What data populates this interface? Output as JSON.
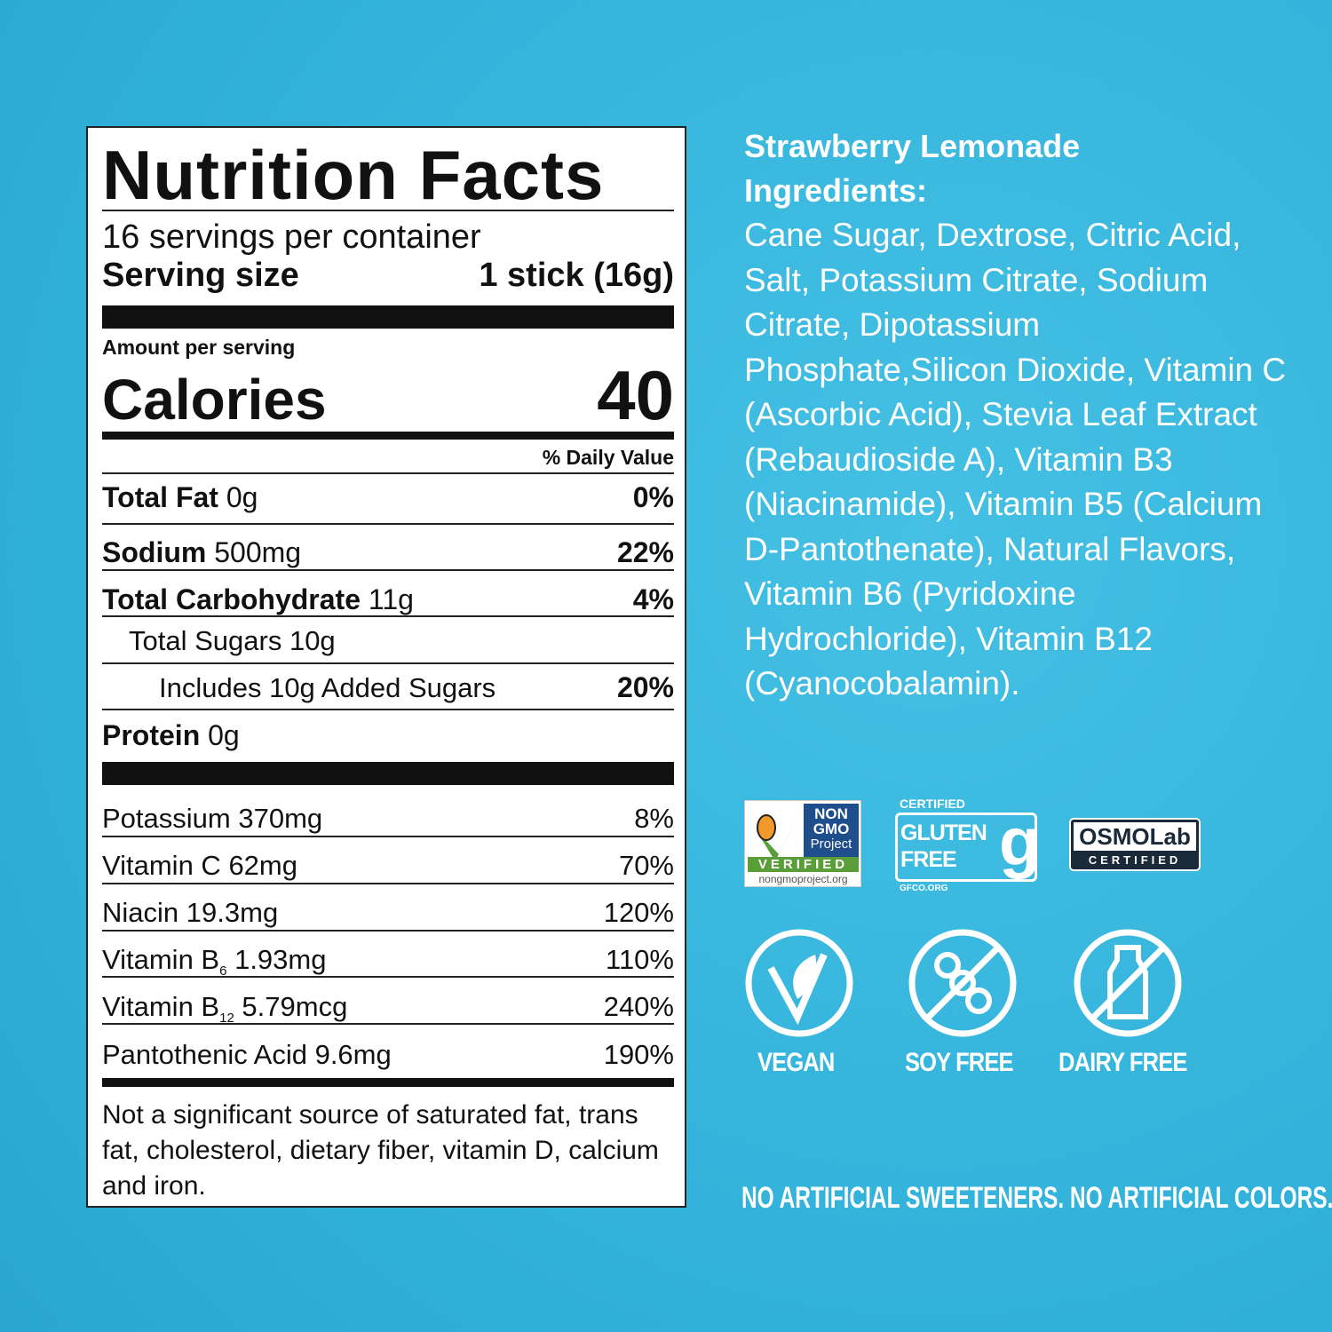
{
  "label": {
    "title": "Nutrition Facts",
    "servings": "16 servings per container",
    "serving_size_label": "Serving size",
    "serving_size_value": "1 stick (16g)",
    "amount_per_serving": "Amount per serving",
    "calories_label": "Calories",
    "calories_value": "40",
    "daily_value_header": "% Daily Value",
    "nutrients": [
      {
        "name": "Total Fat",
        "amount": "0g",
        "dv": "0%"
      },
      {
        "name": "Sodium",
        "amount": "500mg",
        "dv": "22%"
      },
      {
        "name": "Total Carbohydrate",
        "amount": "11g",
        "dv": "4%"
      },
      {
        "name": "Total Sugars",
        "amount": "10g",
        "dv": ""
      },
      {
        "name": "Includes 10g Added Sugars",
        "amount": "",
        "dv": "20%"
      },
      {
        "name": "Protein",
        "amount": "0g",
        "dv": ""
      }
    ],
    "vitamins": [
      {
        "name": "Potassium",
        "amount": "370mg",
        "dv": "8%"
      },
      {
        "name": "Vitamin C",
        "amount": "62mg",
        "dv": "70%"
      },
      {
        "name": "Niacin",
        "amount": "19.3mg",
        "dv": "120%"
      },
      {
        "name": "Vitamin B",
        "sub": "6",
        "amount": "1.93mg",
        "dv": "110%"
      },
      {
        "name": "Vitamin B",
        "sub": "12",
        "amount": "5.79mcg",
        "dv": "240%"
      },
      {
        "name": "Pantothenic Acid",
        "amount": "9.6mg",
        "dv": "190%"
      }
    ],
    "footnote": "Not a significant source of saturated fat, trans fat, cholesterol, dietary fiber, vitamin D, calcium and iron."
  },
  "ingredients": {
    "title": "Strawberry Lemonade",
    "heading": "Ingredients:",
    "text": "Cane Sugar, Dextrose, Citric Acid, Salt, Potassium Citrate, Sodium Citrate, Dipotassium Phosphate,Silicon Dioxide, Vitamin C (Ascorbic Acid), Stevia Leaf Extract (Rebaudioside A), Vitamin B3 (Niacinamide), Vitamin B5 (Calcium D-Pantothenate), Natural Flavors, Vitamin B6 (Pyridoxine Hydrochloride), Vitamin B12 (Cyanocobalamin)."
  },
  "badges": {
    "nongmo": {
      "line1": "NON",
      "line2": "GMO",
      "line3": "Project",
      "verified": "VERIFIED",
      "url": "nongmoproject.org"
    },
    "gluten": {
      "certified": "CERTIFIED",
      "line1": "GLUTEN",
      "line2": "FREE",
      "url": "GFCO.ORG"
    },
    "osmolab": {
      "name": "OSMOLab",
      "certified": "CERTIFIED"
    }
  },
  "icons": [
    {
      "icon": "vegan-leaf-icon",
      "label": "VEGAN"
    },
    {
      "icon": "soy-free-icon",
      "label": "SOY FREE"
    },
    {
      "icon": "dairy-free-icon",
      "label": "DAIRY FREE"
    }
  ],
  "claim": "NO ARTIFICIAL SWEETENERS. NO ARTIFICIAL COLORS.",
  "colors": {
    "background": "#3bb7dd",
    "nongmo_green": "#5a9e3a",
    "nongmo_blue": "#1f4e8c",
    "osmolab_dark": "#1b2a38"
  }
}
